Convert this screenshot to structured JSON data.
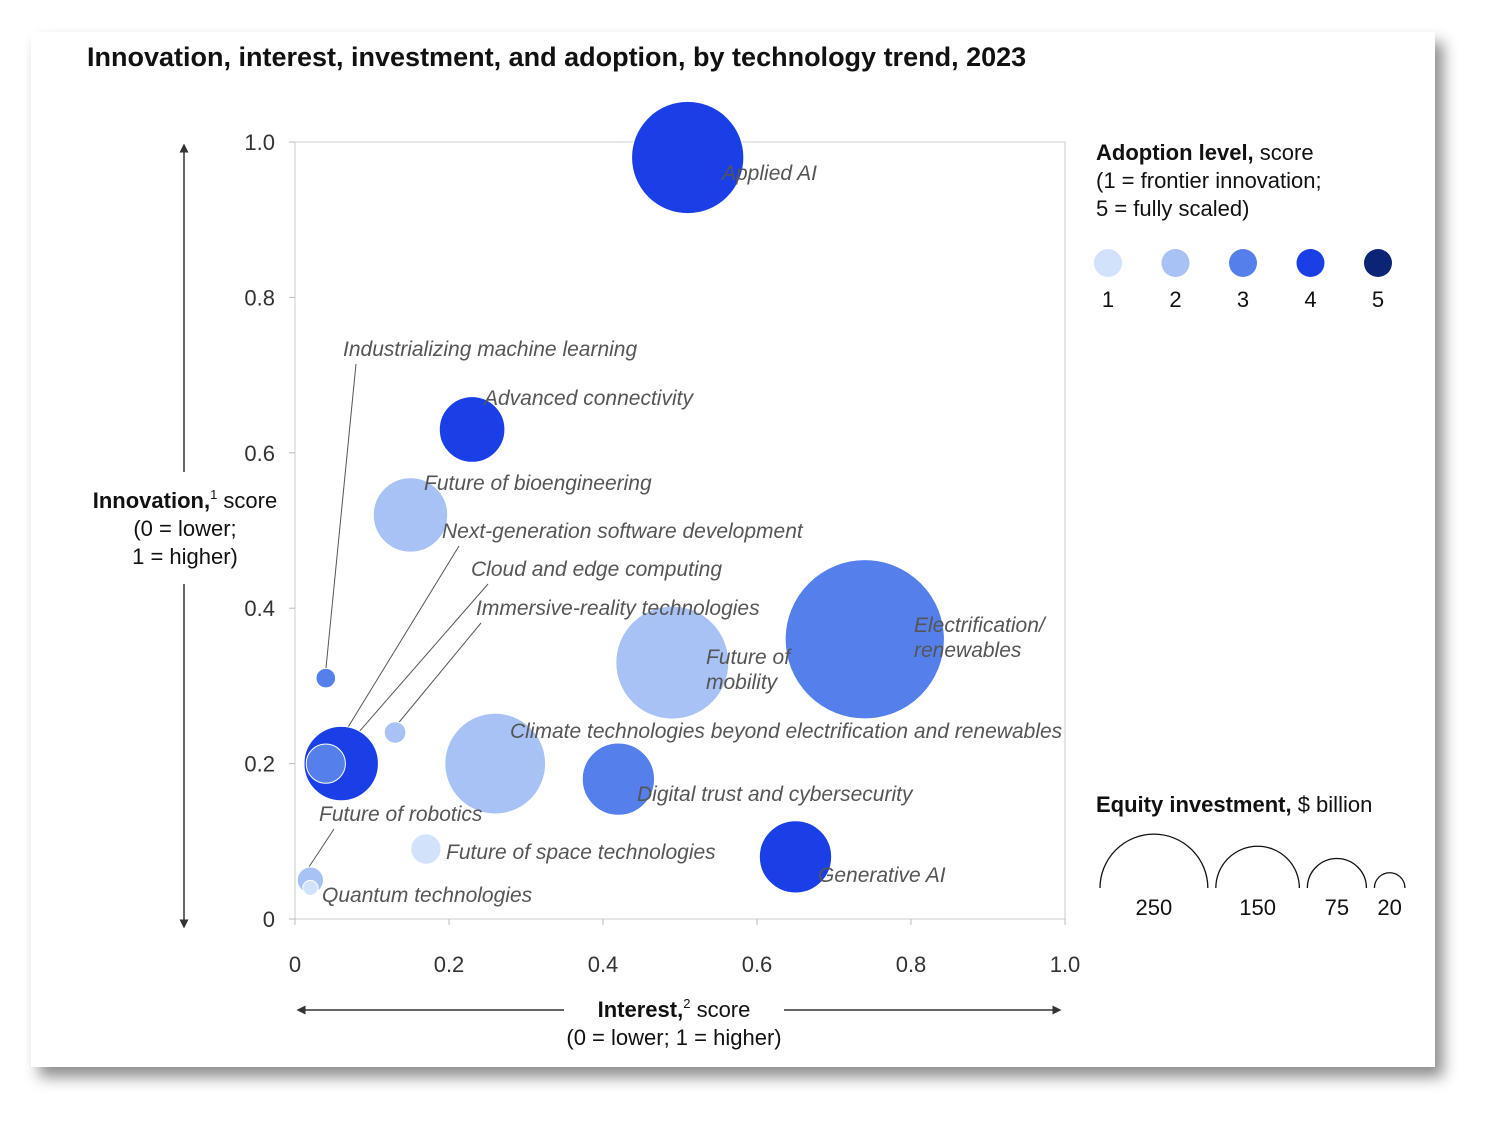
{
  "chart_data": {
    "type": "scatter",
    "title": "Innovation, interest, investment, and adoption, by technology trend, 2023",
    "xlabel": {
      "bold": "Interest,",
      "sup": "2",
      "rest": " score",
      "line2": "(0 = lower; 1 = higher)"
    },
    "ylabel": {
      "bold": "Innovation,",
      "sup": "1",
      "rest": " score",
      "line2": "(0 = lower;",
      "line3": "1 = higher)"
    },
    "xlim": [
      0,
      1
    ],
    "ylim": [
      0,
      1
    ],
    "x_ticks": [
      "0",
      "0.2",
      "0.4",
      "0.6",
      "0.8",
      "1.0"
    ],
    "y_ticks": [
      "0",
      "0.2",
      "0.4",
      "0.6",
      "0.8",
      "1.0"
    ],
    "points": [
      {
        "label": "Applied AI",
        "x": 0.51,
        "y": 0.98,
        "adoption": 4,
        "investment": 82
      },
      {
        "label": "Industrializing machine learning",
        "x": 0.04,
        "y": 0.31,
        "adoption": 3,
        "investment": 2.5
      },
      {
        "label": "Advanced connectivity",
        "x": 0.23,
        "y": 0.63,
        "adoption": 4,
        "investment": 28
      },
      {
        "label": "Future of  bioengineering",
        "x": 0.15,
        "y": 0.52,
        "adoption": 2,
        "investment": 36
      },
      {
        "label": "Next-generation software development",
        "x": 0.04,
        "y": 0.2,
        "adoption": 3,
        "investment": 10
      },
      {
        "label": "Cloud and edge computing",
        "x": 0.06,
        "y": 0.2,
        "adoption": 4,
        "investment": 36
      },
      {
        "label": "Immersive-reality technologies",
        "x": 0.13,
        "y": 0.24,
        "adoption": 2,
        "investment": 3
      },
      {
        "label": "Future of mobility",
        "x": 0.49,
        "y": 0.33,
        "adoption": 2,
        "investment": 83
      },
      {
        "label": "Electrification/ renewables",
        "x": 0.74,
        "y": 0.36,
        "adoption": 3,
        "investment": 165
      },
      {
        "label": "Climate technologies beyond electrification and renewables",
        "x": 0.26,
        "y": 0.2,
        "adoption": 2,
        "investment": 66
      },
      {
        "label": "Digital trust and cybersecurity",
        "x": 0.42,
        "y": 0.18,
        "adoption": 3,
        "investment": 34
      },
      {
        "label": "Future of robotics",
        "x": 0.02,
        "y": 0.05,
        "adoption": 2,
        "investment": 4.5
      },
      {
        "label": "Future of space technologies",
        "x": 0.17,
        "y": 0.09,
        "adoption": 1,
        "investment": 6
      },
      {
        "label": "Quantum technologies",
        "x": 0.02,
        "y": 0.04,
        "adoption": 1,
        "investment": 1.5
      },
      {
        "label": "Generative AI",
        "x": 0.65,
        "y": 0.08,
        "adoption": 4,
        "investment": 34
      }
    ],
    "adoption_legend": {
      "title_bold": "Adoption level,",
      "title_rest": " score",
      "line2": "(1 = frontier innovation;",
      "line3": "5 = fully scaled)",
      "levels": [
        {
          "label": "1",
          "color": "#d3e2fb"
        },
        {
          "label": "2",
          "color": "#a8c2f5"
        },
        {
          "label": "3",
          "color": "#5580ec"
        },
        {
          "label": "4",
          "color": "#1b3fe6"
        },
        {
          "label": "5",
          "color": "#0b2475"
        }
      ]
    },
    "investment_legend": {
      "title_bold": "Equity investment,",
      "title_rest": " $ billion",
      "sizes": [
        {
          "label": "250",
          "value": 250
        },
        {
          "label": "150",
          "value": 150
        },
        {
          "label": "75",
          "value": 75
        },
        {
          "label": "20",
          "value": 20
        }
      ]
    }
  }
}
